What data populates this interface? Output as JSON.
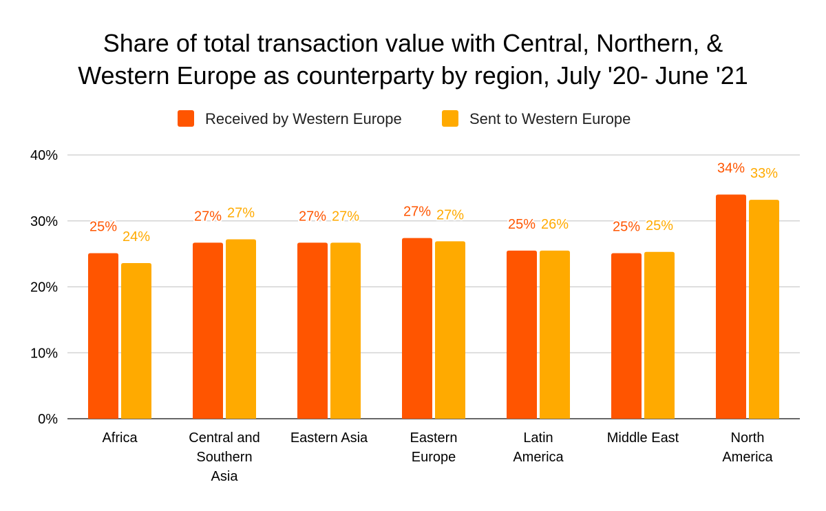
{
  "chart_data": {
    "type": "bar",
    "title_lines": [
      "Share of total transaction value with Central, Northern, &",
      "Western Europe as counterparty by region, July '20- June '21"
    ],
    "categories": [
      "Africa",
      "Central and Southern Asia",
      "Eastern Asia",
      "Eastern Europe",
      "Latin America",
      "Middle East",
      "North America"
    ],
    "series": [
      {
        "name": "Received by Western Europe",
        "color": "#FF5500",
        "values": [
          25.1,
          26.7,
          26.7,
          27.4,
          25.5,
          25.1,
          34.0
        ],
        "labels": [
          "25%",
          "27%",
          "27%",
          "27%",
          "25%",
          "25%",
          "34%"
        ]
      },
      {
        "name": "Sent to Western Europe",
        "color": "#FFAA00",
        "values": [
          23.6,
          27.2,
          26.7,
          26.9,
          25.5,
          25.3,
          33.2
        ],
        "labels": [
          "24%",
          "27%",
          "27%",
          "27%",
          "26%",
          "25%",
          "33%"
        ]
      }
    ],
    "y_ticks": [
      "0%",
      "10%",
      "20%",
      "30%",
      "40%"
    ],
    "ylim": [
      0,
      40
    ],
    "xlabel": "",
    "ylabel": "",
    "grid": true,
    "legend_position": "top"
  }
}
